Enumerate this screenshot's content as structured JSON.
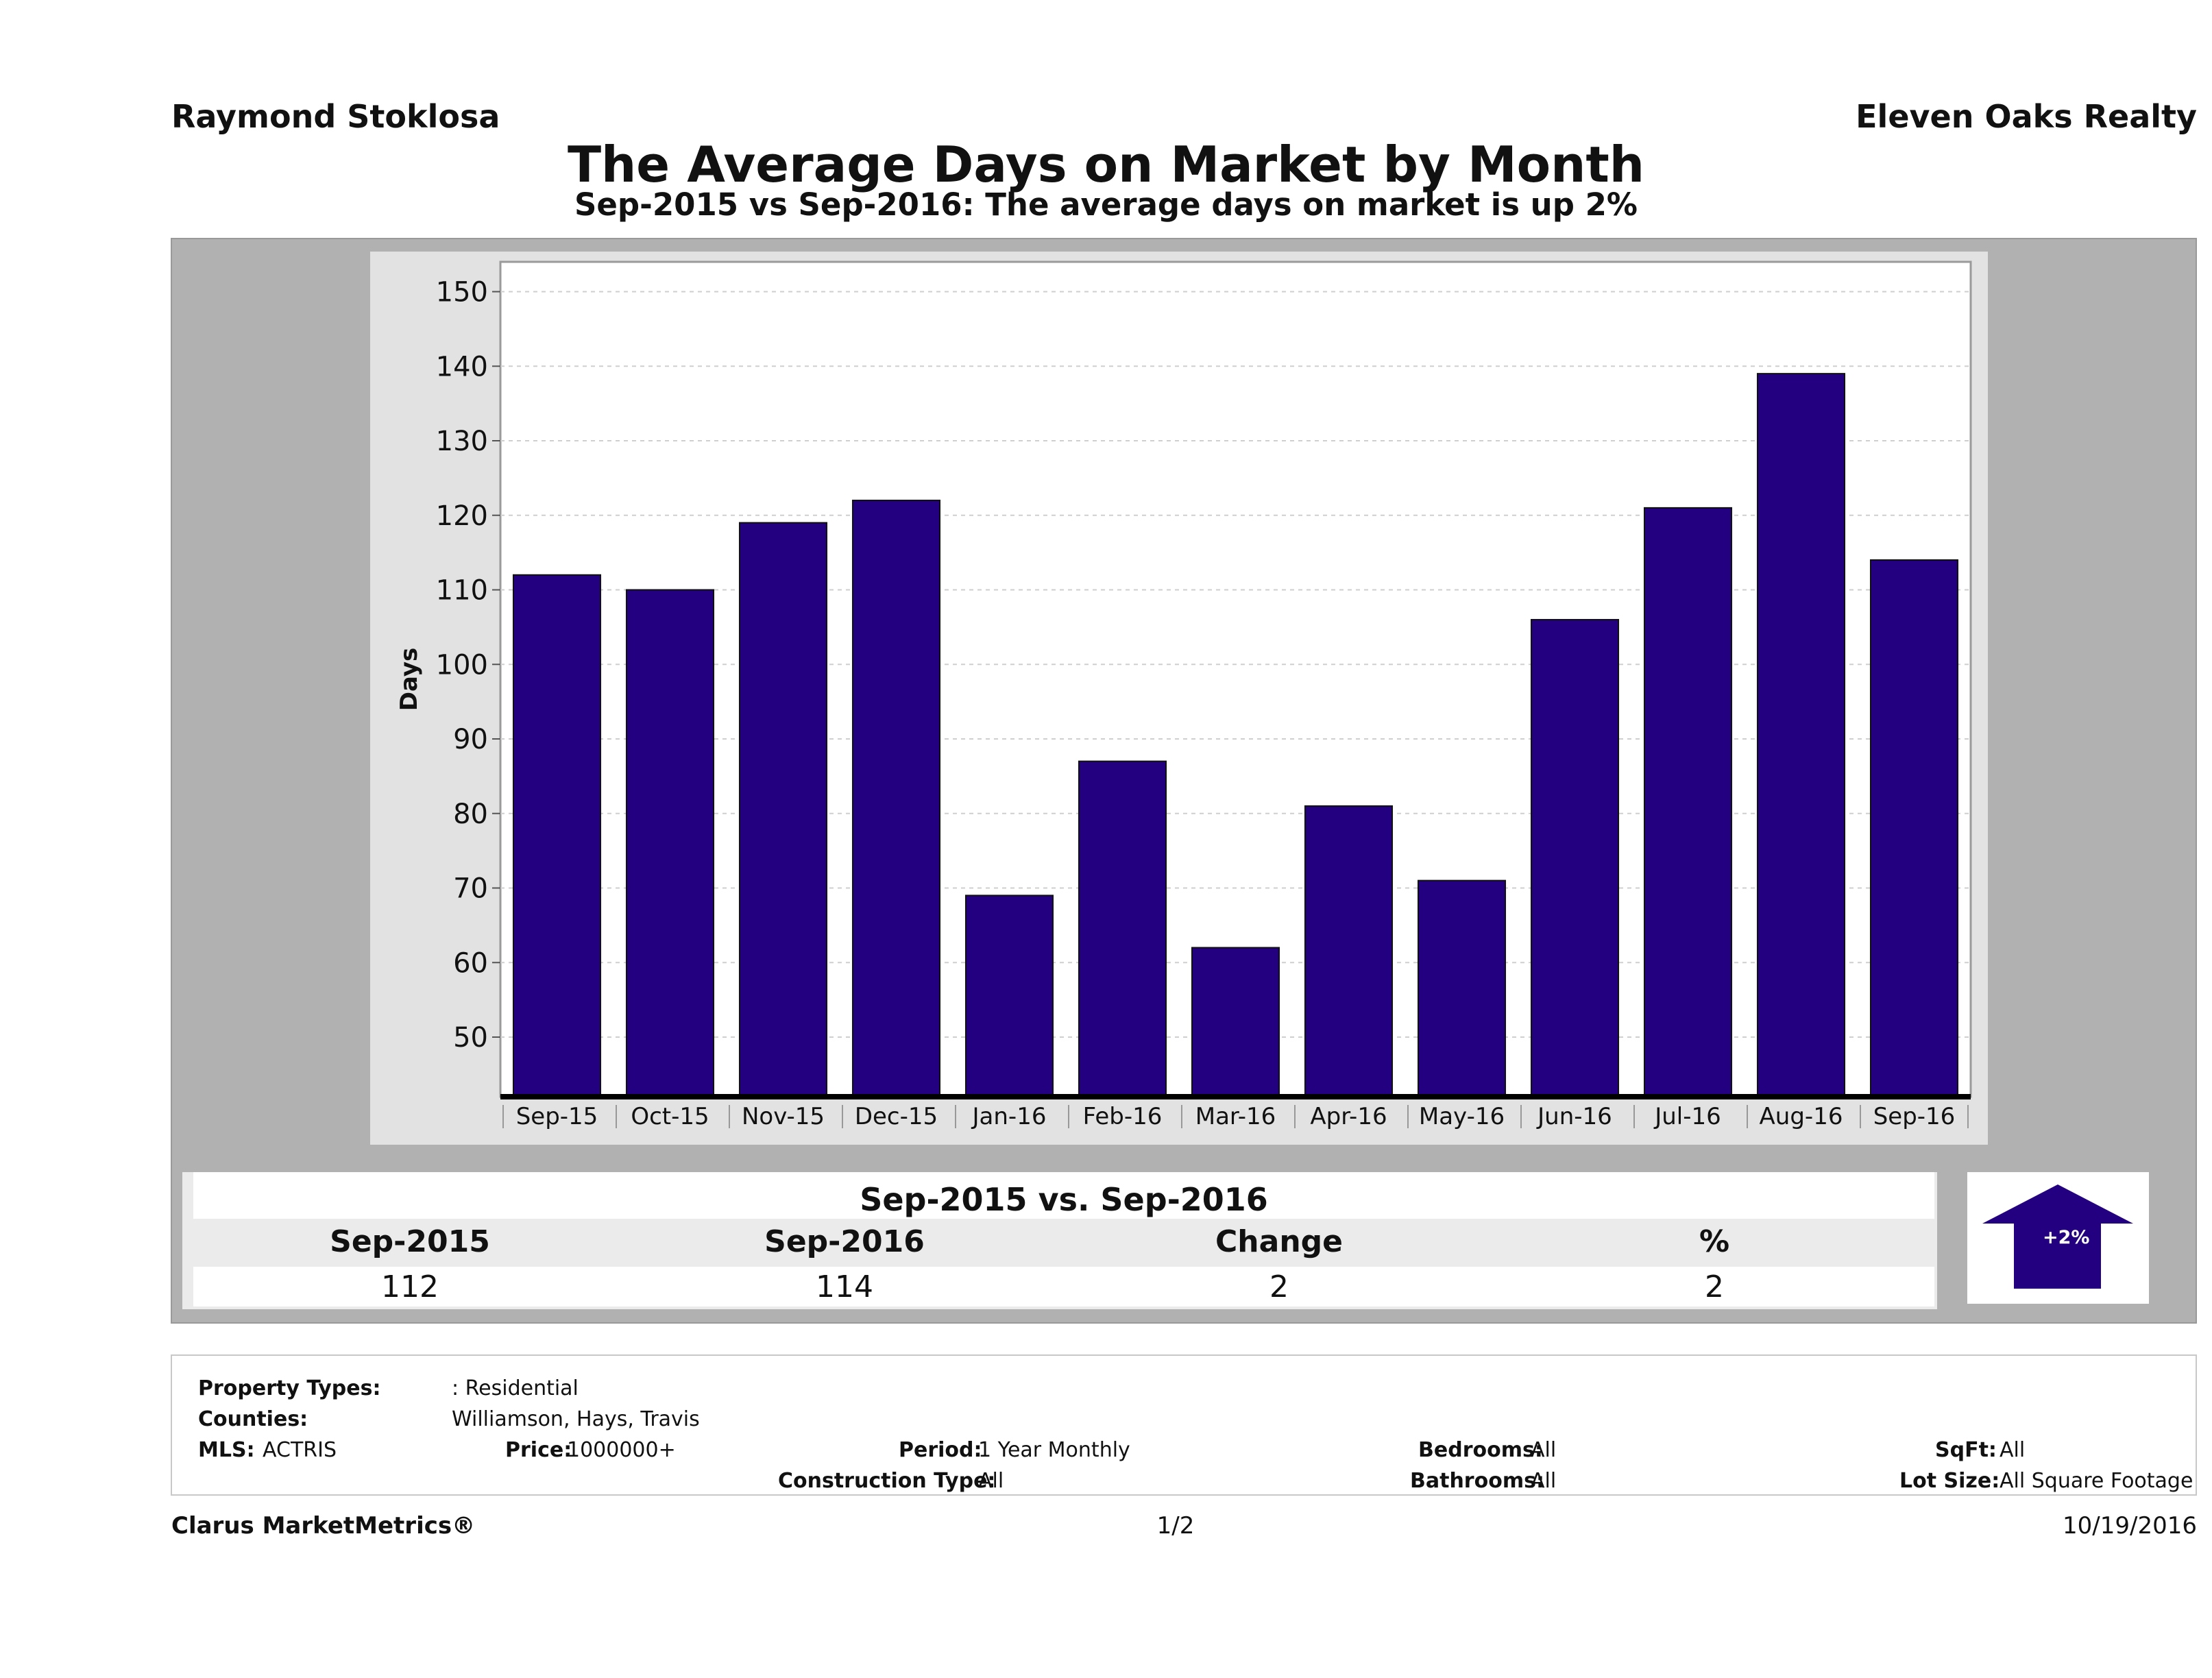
{
  "header": {
    "agent_name": "Raymond Stoklosa",
    "brokerage": "Eleven Oaks Realty"
  },
  "colors": {
    "bar": "#23007f",
    "panel": "#b1b1b1",
    "chart_bg": "#e2e2e2"
  },
  "chart_data": {
    "type": "bar",
    "title": "The Average Days on Market by Month",
    "subtitle": "Sep-2015 vs Sep-2016: The average days on market is up 2%",
    "xlabel": "",
    "ylabel": "Days",
    "categories": [
      "Sep-15",
      "Oct-15",
      "Nov-15",
      "Dec-15",
      "Jan-16",
      "Feb-16",
      "Mar-16",
      "Apr-16",
      "May-16",
      "Jun-16",
      "Jul-16",
      "Aug-16",
      "Sep-16"
    ],
    "values": [
      112,
      110,
      119,
      122,
      69,
      87,
      62,
      81,
      71,
      106,
      121,
      139,
      114
    ],
    "ylim": [
      42,
      154
    ],
    "yticks": [
      50,
      60,
      70,
      80,
      90,
      100,
      110,
      120,
      130,
      140,
      150
    ],
    "grid": true,
    "legend": "none"
  },
  "summary": {
    "title": "Sep-2015 vs. Sep-2016",
    "headers": [
      "Sep-2015",
      "Sep-2016",
      "Change",
      "%"
    ],
    "values": [
      "112",
      "114",
      "2",
      "2"
    ],
    "badge": "+2%",
    "badge_icon": "up-arrow-icon"
  },
  "criteria": {
    "property_types_label": "Property Types:",
    "property_types_value": ": Residential",
    "counties_label": "Counties:",
    "counties_value": "Williamson, Hays, Travis",
    "mls_label": "MLS:",
    "mls_value": "ACTRIS",
    "price_label": "Price:",
    "price_value": "1000000+",
    "period_label": "Period:",
    "period_value": "1 Year Monthly",
    "construction_label": "Construction Type:",
    "construction_value": "All",
    "bedrooms_label": "Bedrooms:",
    "bedrooms_value": "All",
    "bathrooms_label": "Bathrooms:",
    "bathrooms_value": "All",
    "sqft_label": "SqFt:",
    "sqft_value": "All",
    "lot_size_label": "Lot Size:",
    "lot_size_value": "All Square Footage"
  },
  "footer": {
    "brand": "Clarus MarketMetrics®",
    "page": "1/2",
    "date": "10/19/2016"
  }
}
